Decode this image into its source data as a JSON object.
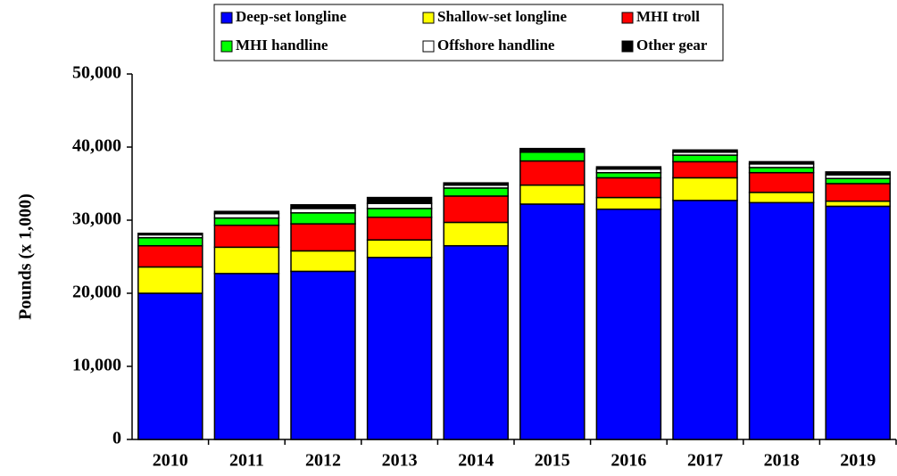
{
  "chart_data": {
    "type": "stacked_bar",
    "y_label": "Pounds  (x 1,000)",
    "categories": [
      "2010",
      "2011",
      "2012",
      "2013",
      "2014",
      "2015",
      "2016",
      "2017",
      "2018",
      "2019"
    ],
    "series": [
      {
        "name": "Deep-set longline",
        "color": "#0000ff",
        "values": [
          20000,
          22700,
          23000,
          24900,
          26500,
          32200,
          31500,
          32700,
          32400,
          31900
        ]
      },
      {
        "name": "Shallow-set longline",
        "color": "#ffff00",
        "values": [
          3600,
          3600,
          2800,
          2400,
          3200,
          2600,
          1600,
          3100,
          1400,
          700
        ]
      },
      {
        "name": "MHI troll",
        "color": "#ff0000",
        "values": [
          2900,
          3000,
          3700,
          3100,
          3600,
          3300,
          2700,
          2200,
          2700,
          2400
        ]
      },
      {
        "name": "MHI handline",
        "color": "#00ff00",
        "values": [
          1100,
          1000,
          1500,
          1200,
          1100,
          1200,
          700,
          900,
          700,
          700
        ]
      },
      {
        "name": "Offshore handline",
        "color": "#ffffff",
        "values": [
          400,
          600,
          600,
          700,
          400,
          200,
          500,
          400,
          500,
          500
        ]
      },
      {
        "name": "Other gear",
        "color": "#000000",
        "values": [
          200,
          300,
          500,
          800,
          300,
          300,
          300,
          300,
          300,
          400
        ]
      }
    ],
    "ylim": [
      0,
      50000
    ],
    "yticks": [
      0,
      {
        "value": 10000,
        "label": "10,000"
      },
      {
        "value": 20000,
        "label": "20,000"
      },
      {
        "value": 30000,
        "label": "30,000"
      },
      {
        "value": 40000,
        "label": "40,000"
      },
      {
        "value": 50000,
        "label": "50,000"
      }
    ],
    "legend": "top"
  }
}
